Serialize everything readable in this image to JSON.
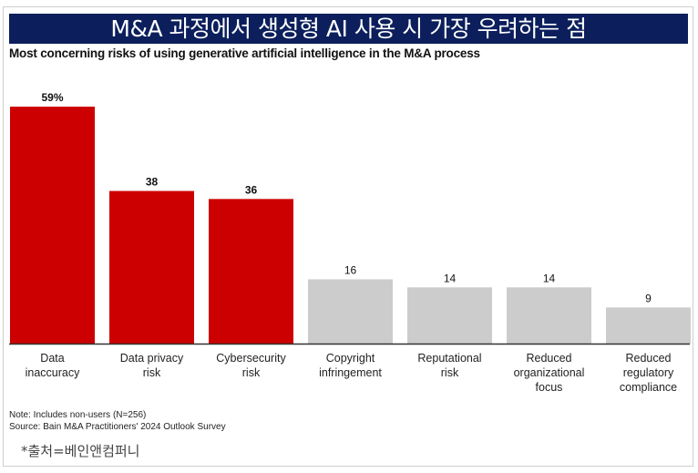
{
  "banner_title": "M&A 과정에서 생성형 AI 사용 시 가장 우려하는 점",
  "chart_data": {
    "type": "bar",
    "title": "Most concerning risks of using generative artificial intelligence in the M&A process",
    "categories": [
      [
        "Data",
        "inaccuracy"
      ],
      [
        "Data privacy",
        "risk"
      ],
      [
        "Cybersecurity",
        "risk"
      ],
      [
        "Copyright",
        "infringement"
      ],
      [
        "Reputational",
        "risk"
      ],
      [
        "Reduced",
        "organizational",
        "focus"
      ],
      [
        "Reduced",
        "regulatory",
        "compliance"
      ]
    ],
    "values": [
      59,
      38,
      36,
      16,
      14,
      14,
      9
    ],
    "data_labels": [
      "59%",
      "38",
      "36",
      "16",
      "14",
      "14",
      "9"
    ],
    "unit": "%",
    "highlight_colors": [
      "#cc0000",
      "#cc0000",
      "#cc0000",
      "#cccccc",
      "#cccccc",
      "#cccccc",
      "#cccccc"
    ],
    "ylim": [
      0,
      60
    ],
    "grid": false,
    "legend": "none"
  },
  "note": "Note: Includes non-users (N=256)",
  "source": "Source: Bain M&A Practitioners' 2024 Outlook Survey",
  "credit": "*출처=베인앤컴퍼니"
}
